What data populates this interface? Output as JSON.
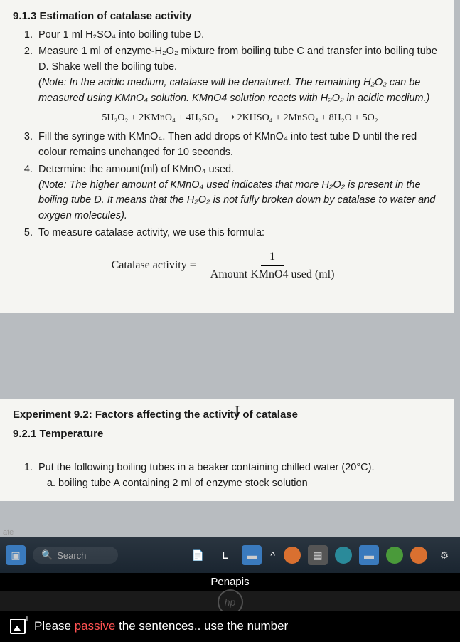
{
  "doc": {
    "section_913": "9.1.3 Estimation of catalase activity",
    "step1": "Pour 1 ml H₂SO₄ into boiling tube D.",
    "step2a": "Measure 1 ml of enzyme-H₂O₂ mixture from boiling tube C and transfer into boiling tube D. Shake well the boiling tube.",
    "step2_note": "(Note: In the acidic medium, catalase will be denatured. The remaining H₂O₂ can be measured using KMnO₄ solution. KMnO4 solution reacts with H₂O₂ in acidic medium.)",
    "equation": "5H₂O₂ + 2KMnO₄ + 4H₂SO₄ ⟶ 2KHSO₄ + 2MnSO₄ + 8H₂O + 5O₂",
    "step3": "Fill the syringe with KMnO₄. Then add drops of KMnO₄ into test tube D until the red colour remains unchanged for 10 seconds.",
    "step4a": "Determine the amount(ml) of KMnO₄ used.",
    "step4_note": "(Note: The higher amount of KMnO₄ used indicates that more H₂O₂ is present in the boiling tube D. It means that the H₂O₂ is not fully broken down by catalase to water and oxygen molecules).",
    "step5": "To measure catalase activity, we use this formula:",
    "formula_lhs": "Catalase activity =",
    "formula_num": "1",
    "formula_den": "Amount KMnO4 used (ml)",
    "section_92": "Experiment 9.2: Factors affecting the activity of catalase",
    "section_921": "9.2.1 Temperature",
    "step92_1": "Put the following boiling tubes in a beaker containing chilled water (20°C).",
    "step92_1a": "boiling tube A containing 2 ml of enzyme stock solution"
  },
  "ui": {
    "ate": "ate",
    "search": "Search",
    "penapis": "Penapis",
    "hp": "hp",
    "prompt_pre": "Please ",
    "prompt_word": "passive",
    "prompt_post": " the sentences.. use the number"
  },
  "colors": {
    "doc_bg": "#f5f5f2",
    "screen_bg": "#b8bcc0",
    "taskbar_top": "#2a3540",
    "taskbar_bot": "#1a2530",
    "error_red": "#ff5252",
    "tb_orange": "#d97030",
    "tb_blue": "#3a7abd",
    "tb_green": "#4a9a3a",
    "tb_teal": "#2a8a9a"
  }
}
